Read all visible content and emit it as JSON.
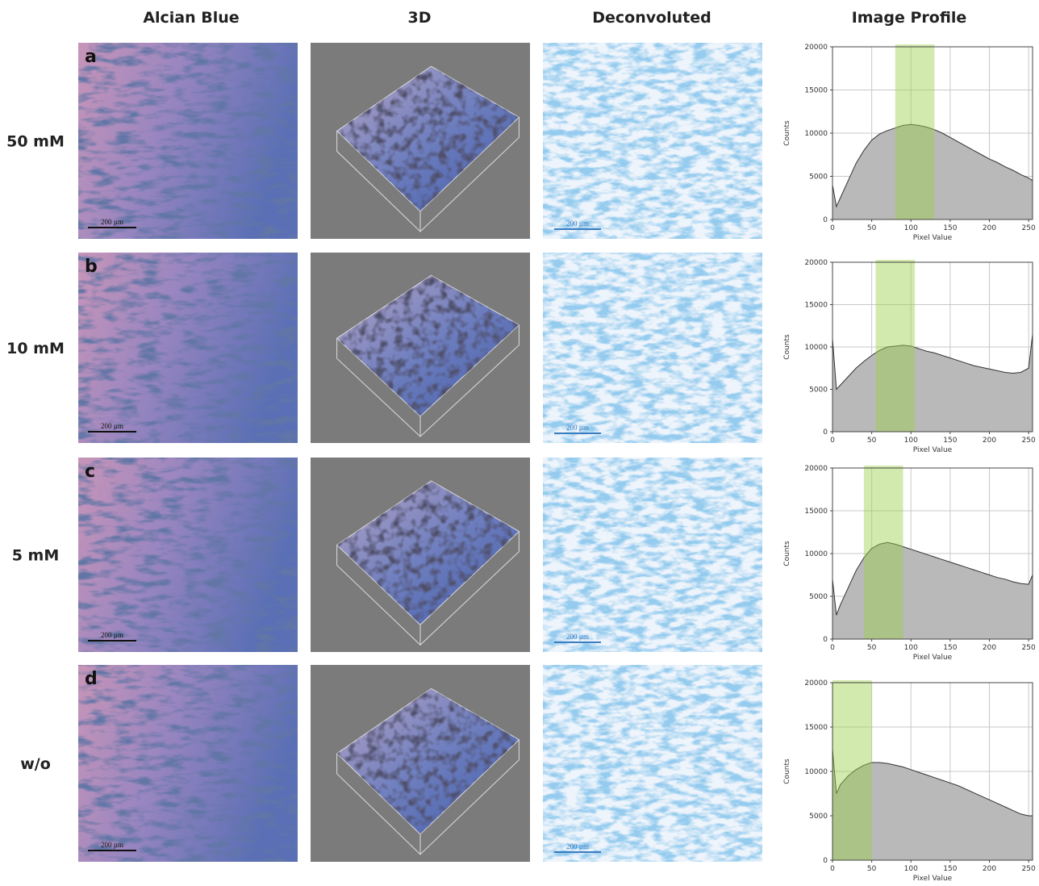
{
  "header": {
    "columns": [
      "Alcian Blue",
      "3D",
      "Deconvoluted",
      "Image Profile"
    ]
  },
  "rows": [
    {
      "label": "50 mM",
      "letter": "a"
    },
    {
      "label": "10 mM",
      "letter": "b"
    },
    {
      "label": "5 mM",
      "letter": "c"
    },
    {
      "label": "w/o",
      "letter": "d"
    }
  ],
  "scale_bar": "200 µm",
  "chart_data": [
    {
      "type": "area",
      "x_label": "Pixel Value",
      "y_label": "Counts",
      "color": "#b9b9b9",
      "line_color": "#333333",
      "highlight": [
        80,
        130
      ],
      "highlight_color": "#9bd04a",
      "x": [
        0,
        5,
        10,
        20,
        30,
        40,
        50,
        60,
        70,
        80,
        90,
        100,
        110,
        120,
        130,
        140,
        150,
        160,
        170,
        180,
        190,
        200,
        210,
        220,
        230,
        240,
        250,
        255
      ],
      "values": [
        4000,
        1500,
        2500,
        4500,
        6500,
        8000,
        9200,
        9900,
        10300,
        10600,
        10900,
        11000,
        10900,
        10700,
        10400,
        10000,
        9500,
        9000,
        8500,
        8000,
        7500,
        7000,
        6600,
        6100,
        5700,
        5200,
        4800,
        4500
      ],
      "xlim": [
        0,
        255
      ],
      "xticks": [
        0,
        50,
        100,
        150,
        200,
        250
      ],
      "ylim": [
        0,
        20000
      ],
      "yticks": [
        0,
        5000,
        10000,
        15000,
        20000
      ],
      "grid": true
    },
    {
      "type": "area",
      "x_label": "Pixel Value",
      "y_label": "Counts",
      "color": "#b9b9b9",
      "line_color": "#333333",
      "highlight": [
        55,
        105
      ],
      "highlight_color": "#9bd04a",
      "x": [
        0,
        5,
        10,
        20,
        30,
        40,
        50,
        60,
        70,
        80,
        90,
        100,
        110,
        120,
        130,
        140,
        150,
        160,
        170,
        180,
        190,
        200,
        210,
        220,
        230,
        240,
        250,
        255
      ],
      "values": [
        11000,
        5000,
        5500,
        6500,
        7500,
        8300,
        9000,
        9600,
        10000,
        10100,
        10200,
        10100,
        9800,
        9500,
        9300,
        9000,
        8700,
        8400,
        8100,
        7800,
        7600,
        7400,
        7200,
        7000,
        6900,
        7000,
        7500,
        11500
      ],
      "xlim": [
        0,
        255
      ],
      "xticks": [
        0,
        50,
        100,
        150,
        200,
        250
      ],
      "ylim": [
        0,
        20000
      ],
      "yticks": [
        0,
        5000,
        10000,
        15000,
        20000
      ],
      "grid": true
    },
    {
      "type": "area",
      "x_label": "Pixel Value",
      "y_label": "Counts",
      "color": "#b9b9b9",
      "line_color": "#333333",
      "highlight": [
        40,
        90
      ],
      "highlight_color": "#9bd04a",
      "x": [
        0,
        5,
        10,
        20,
        30,
        40,
        50,
        60,
        70,
        80,
        90,
        100,
        110,
        120,
        130,
        140,
        150,
        160,
        170,
        180,
        190,
        200,
        210,
        220,
        230,
        240,
        250,
        255
      ],
      "values": [
        7000,
        2800,
        4000,
        6000,
        8000,
        9500,
        10600,
        11100,
        11300,
        11100,
        10800,
        10500,
        10200,
        9900,
        9600,
        9300,
        9000,
        8700,
        8400,
        8100,
        7800,
        7500,
        7200,
        7000,
        6700,
        6500,
        6400,
        7500
      ],
      "xlim": [
        0,
        255
      ],
      "xticks": [
        0,
        50,
        100,
        150,
        200,
        250
      ],
      "ylim": [
        0,
        20000
      ],
      "yticks": [
        0,
        5000,
        10000,
        15000,
        20000
      ],
      "grid": true
    },
    {
      "type": "area",
      "x_label": "Pixel Value",
      "y_label": "Counts",
      "color": "#b9b9b9",
      "line_color": "#333333",
      "highlight": [
        0,
        50
      ],
      "highlight_color": "#9bd04a",
      "x": [
        0,
        5,
        10,
        20,
        30,
        40,
        50,
        60,
        70,
        80,
        90,
        100,
        110,
        120,
        130,
        140,
        150,
        160,
        170,
        180,
        190,
        200,
        210,
        220,
        230,
        240,
        250,
        255
      ],
      "values": [
        12500,
        7500,
        8500,
        9500,
        10200,
        10700,
        11000,
        11000,
        10900,
        10700,
        10500,
        10200,
        9900,
        9600,
        9300,
        9000,
        8700,
        8400,
        8000,
        7600,
        7200,
        6800,
        6400,
        6000,
        5600,
        5200,
        5000,
        5000
      ],
      "xlim": [
        0,
        255
      ],
      "xticks": [
        0,
        50,
        100,
        150,
        200,
        250
      ],
      "ylim": [
        0,
        20000
      ],
      "yticks": [
        0,
        5000,
        10000,
        15000,
        20000
      ],
      "grid": true
    }
  ]
}
